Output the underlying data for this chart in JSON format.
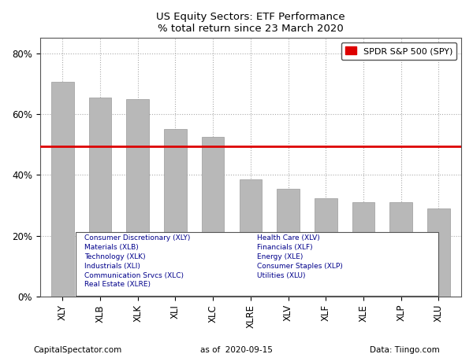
{
  "title": "US Equity Sectors: ETF Performance",
  "subtitle": "% total return since 23 March 2020",
  "categories": [
    "XLY",
    "XLB",
    "XLK",
    "XLI",
    "XLC",
    "XLRE",
    "XLV",
    "XLF",
    "XLE",
    "XLP",
    "XLU"
  ],
  "values": [
    70.5,
    65.5,
    65.0,
    55.0,
    52.5,
    38.5,
    35.5,
    32.5,
    31.0,
    31.0,
    29.0
  ],
  "spy_value": 49.5,
  "bar_color": "#b8b8b8",
  "spy_color": "#dd0000",
  "ylim": [
    0,
    85
  ],
  "yticks": [
    0,
    20,
    40,
    60,
    80
  ],
  "ytick_labels": [
    "0%",
    "20%",
    "40%",
    "60%",
    "80%"
  ],
  "legend_label": "SPDR S&P 500 (SPY)",
  "footnote_left": "CapitalSpectator.com",
  "footnote_center": "as of  2020-09-15",
  "footnote_right": "Data: Tiingo.com",
  "annotation_col1": [
    "Consumer Discretionary (XLY)",
    "Materials (XLB)",
    "Technology (XLK)",
    "Industrials (XLI)",
    "Communication Srvcs (XLC)",
    "Real Estate (XLRE)"
  ],
  "annotation_col2": [
    "Health Care (XLV)",
    "Financials (XLF)",
    "Energy (XLE)",
    "Consumer Staples (XLP)",
    "Utilities (XLU)"
  ],
  "annotation_text_color": "#00008b"
}
